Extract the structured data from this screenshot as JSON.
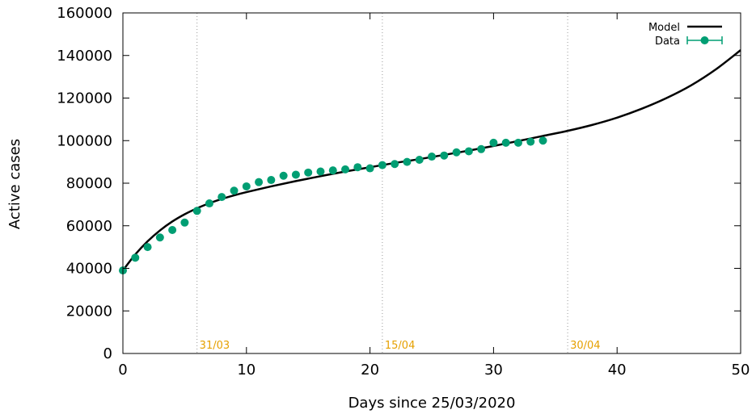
{
  "chart_data": {
    "type": "scatter",
    "xlabel": "Days since 25/03/2020",
    "ylabel": "Active cases",
    "xlim": [
      0,
      50
    ],
    "ylim": [
      0,
      160000
    ],
    "xticks": [
      0,
      10,
      20,
      30,
      40,
      50
    ],
    "yticks": [
      0,
      20000,
      40000,
      60000,
      80000,
      100000,
      120000,
      140000,
      160000
    ],
    "grid": false,
    "legend_position": "top-right",
    "colors": {
      "data": "#009e73",
      "model": "#000000",
      "annotation": "#e6a000",
      "vline": "#999999"
    },
    "vlines": [
      {
        "x": 6,
        "label": "31/03"
      },
      {
        "x": 21,
        "label": "15/04"
      },
      {
        "x": 36,
        "label": "30/04"
      }
    ],
    "series": [
      {
        "name": "Model",
        "kind": "line",
        "x": [
          0,
          1,
          2,
          3,
          4,
          5,
          6,
          7,
          8,
          9,
          10,
          12,
          14,
          16,
          18,
          20,
          22,
          24,
          26,
          28,
          30,
          32,
          34,
          36,
          38,
          40,
          42,
          44,
          46,
          48,
          50
        ],
        "y": [
          39000,
          46500,
          52700,
          57800,
          62000,
          65400,
          68200,
          70600,
          72600,
          74300,
          75800,
          78500,
          81000,
          83300,
          85500,
          87500,
          89500,
          91300,
          93300,
          95300,
          97500,
          99800,
          102200,
          104600,
          107400,
          110800,
          115000,
          120000,
          126000,
          133500,
          142500
        ]
      },
      {
        "name": "Data",
        "kind": "points",
        "x": [
          0,
          1,
          2,
          3,
          4,
          5,
          6,
          7,
          8,
          9,
          10,
          11,
          12,
          13,
          14,
          15,
          16,
          17,
          18,
          19,
          20,
          21,
          22,
          23,
          24,
          25,
          26,
          27,
          28,
          29,
          30,
          31,
          32,
          33,
          34
        ],
        "y": [
          39000,
          45000,
          50000,
          54500,
          58000,
          61500,
          67000,
          70500,
          73500,
          76500,
          78500,
          80500,
          81500,
          83500,
          84000,
          85000,
          85500,
          86000,
          86500,
          87500,
          87000,
          88500,
          89000,
          90000,
          91000,
          92500,
          93000,
          94500,
          95000,
          96000,
          99000,
          99000,
          99000,
          99500,
          100000
        ]
      }
    ]
  }
}
